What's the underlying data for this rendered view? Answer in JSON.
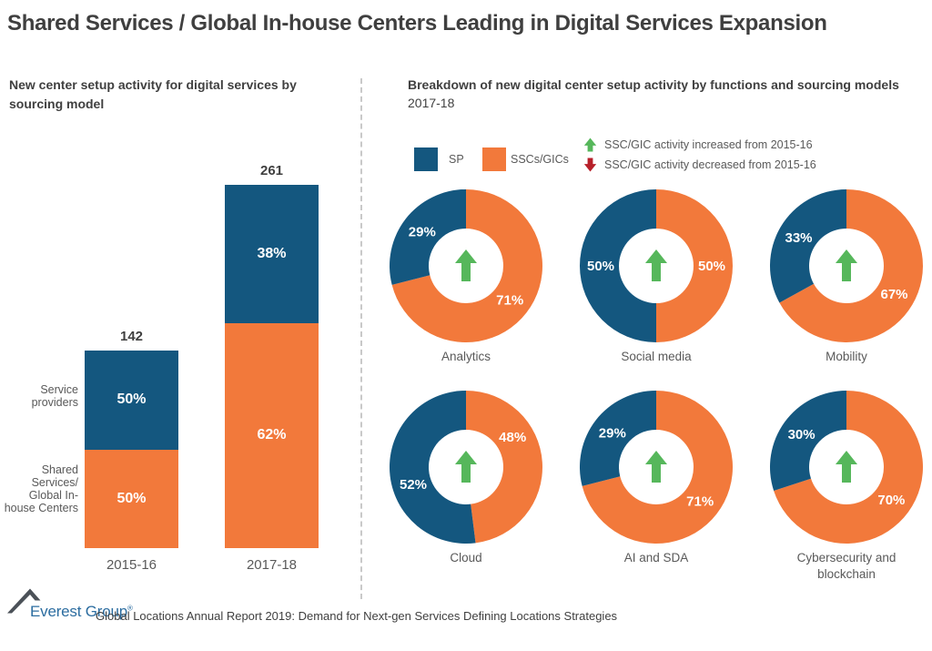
{
  "title": "Shared Services / Global In-house Centers Leading in Digital Services Expansion",
  "accent_colors": {
    "sp_blue": "#14577F",
    "ssc_orange": "#F2793B",
    "up_green": "#56B75B",
    "down_red": "#B7202A",
    "text_dark": "#3F3F3F",
    "text_gray": "#595959",
    "logo_blue": "#2C6DA0"
  },
  "left_panel": {
    "subtitle": "New center setup activity for digital services by sourcing model",
    "row_labels": {
      "sp": "Service providers",
      "ssc": "Shared Services/ Global In-house Centers"
    }
  },
  "right_panel": {
    "title": "Breakdown of new digital center setup activity by functions and sourcing models",
    "subtitle": "2017-18",
    "legend": [
      {
        "label": "SP",
        "color": "#14577F"
      },
      {
        "label": "SSCs/GICs",
        "color": "#F2793B"
      }
    ],
    "arrow_legend": [
      {
        "direction": "up",
        "label": "SSC/GIC activity increased from 2015-16",
        "color": "#56B75B"
      },
      {
        "direction": "down",
        "label": "SSC/GIC activity decreased from 2015-16",
        "color": "#B7202A"
      }
    ]
  },
  "footer": {
    "logo_text": "Everest Group",
    "registered_mark": "®",
    "source_text": "Global Locations Annual Report 2019: Demand for Next-gen Services Defining Locations Strategies"
  },
  "chart_data": [
    {
      "type": "bar",
      "stacked": true,
      "title": "New center setup activity for digital services by sourcing model",
      "categories": [
        "2015-16",
        "2017-18"
      ],
      "totals": [
        142,
        261
      ],
      "series": [
        {
          "name": "Service providers (SP)",
          "color": "#14577F",
          "pct": [
            50,
            38
          ]
        },
        {
          "name": "Shared Services / Global In-house Centers (SSCs/GICs)",
          "color": "#F2793B",
          "pct": [
            50,
            62
          ]
        }
      ],
      "value_labels": "totals above bars, segment percentages inside segments"
    },
    {
      "type": "pie",
      "subtype": "donut-grid",
      "title": "Breakdown of new digital center setup activity by functions and sourcing models 2017-18",
      "legend": [
        "SP",
        "SSCs/GICs"
      ],
      "donuts": [
        {
          "label": "Analytics",
          "sp_pct": 29,
          "ssc_pct": 71,
          "trend": "up"
        },
        {
          "label": "Social media",
          "sp_pct": 50,
          "ssc_pct": 50,
          "trend": "up"
        },
        {
          "label": "Mobility",
          "sp_pct": 33,
          "ssc_pct": 67,
          "trend": "up"
        },
        {
          "label": "Cloud",
          "sp_pct": 52,
          "ssc_pct": 48,
          "trend": "up"
        },
        {
          "label": "AI and SDA",
          "sp_pct": 29,
          "ssc_pct": 71,
          "trend": "up"
        },
        {
          "label": "Cybersecurity and blockchain",
          "sp_pct": 30,
          "ssc_pct": 70,
          "trend": "up"
        }
      ]
    }
  ]
}
